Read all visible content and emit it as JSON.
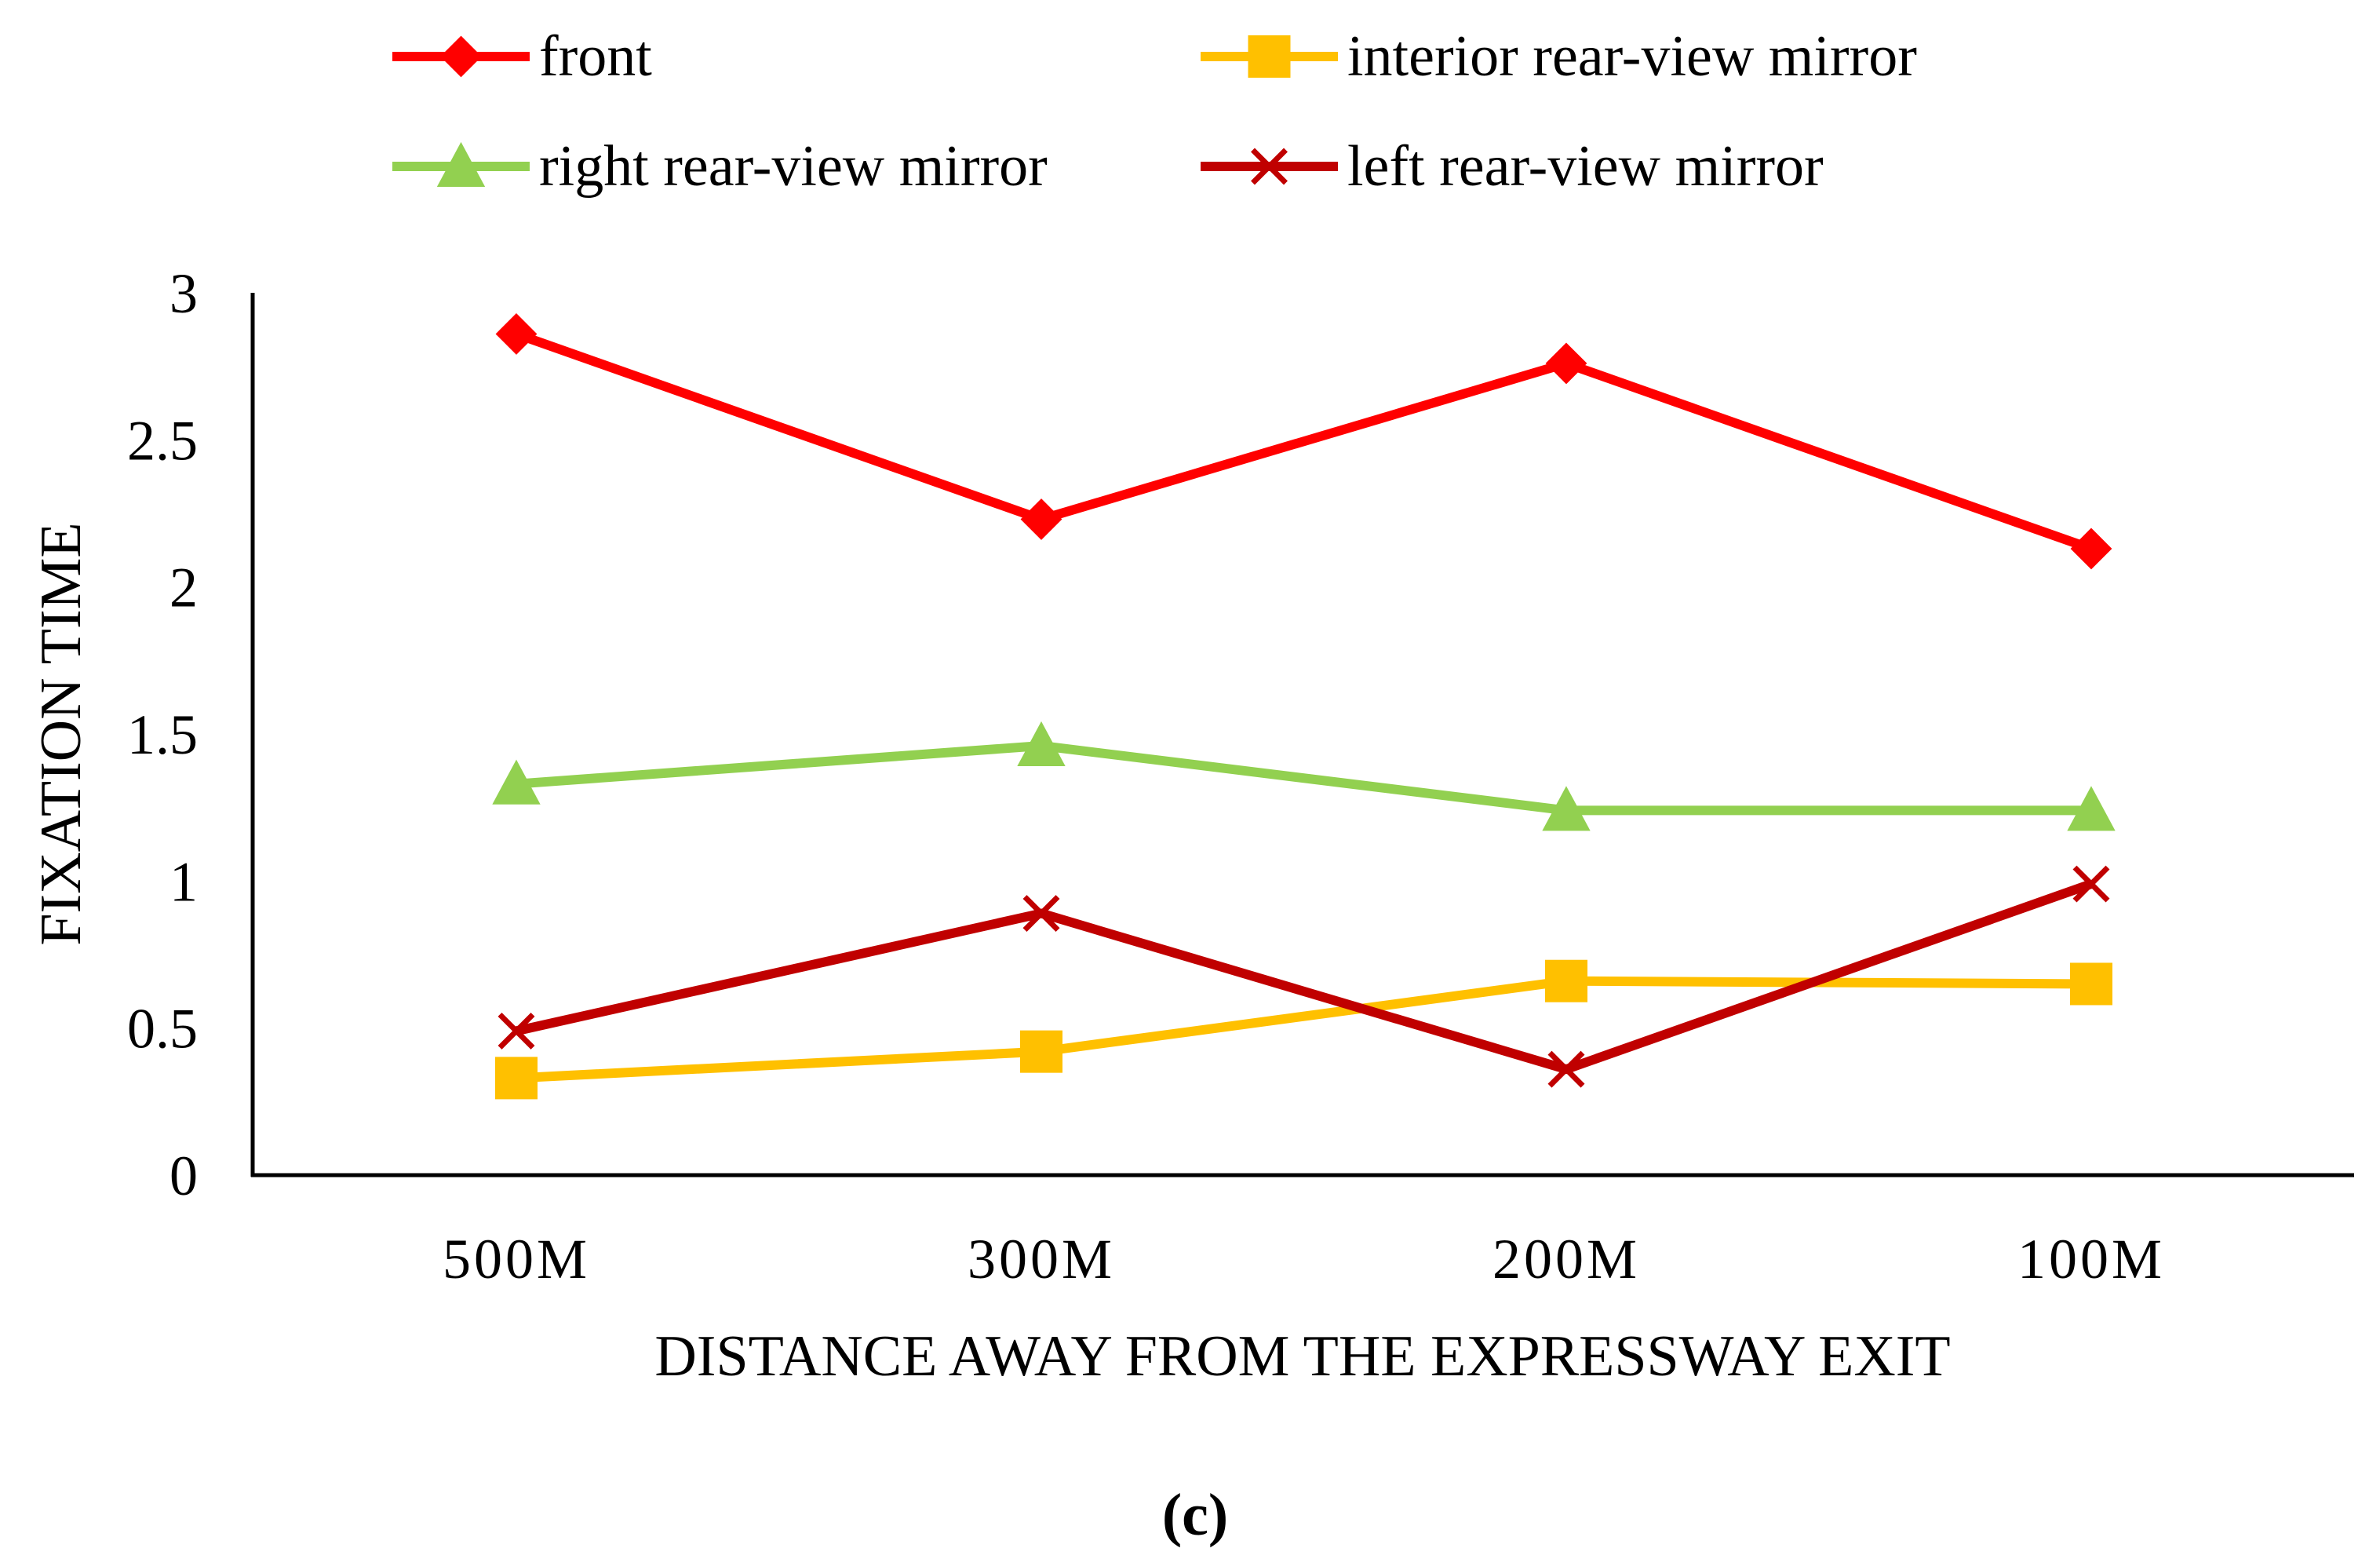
{
  "chart_data": {
    "type": "line",
    "title": "",
    "xlabel": "DISTANCE AWAY FROM THE EXPRESSWAY EXIT",
    "ylabel": "FIXATION TIME",
    "categories": [
      "500M",
      "300M",
      "200M",
      "100M"
    ],
    "ylim": [
      0,
      3
    ],
    "yticks": [
      "0",
      "0.5",
      "1",
      "1.5",
      "2",
      "2.5",
      "3"
    ],
    "yticks_values": [
      0,
      0.5,
      1,
      1.5,
      2,
      2.5,
      3
    ],
    "grid": false,
    "legend_position": "top",
    "caption": "(c)",
    "series": [
      {
        "name": "front",
        "color": "#ff0000",
        "marker": "diamond",
        "values": [
          2.86,
          2.23,
          2.76,
          2.13
        ]
      },
      {
        "name": "interior rear-view mirror",
        "color": "#ffc000",
        "marker": "square",
        "values": [
          0.33,
          0.42,
          0.66,
          0.65
        ]
      },
      {
        "name": "right rear-view mirror",
        "color": "#92d050",
        "marker": "triangle",
        "values": [
          1.33,
          1.46,
          1.24,
          1.24
        ]
      },
      {
        "name": "left rear-view mirror",
        "color": "#c00000",
        "marker": "x",
        "values": [
          0.49,
          0.89,
          0.36,
          0.99
        ]
      }
    ]
  }
}
